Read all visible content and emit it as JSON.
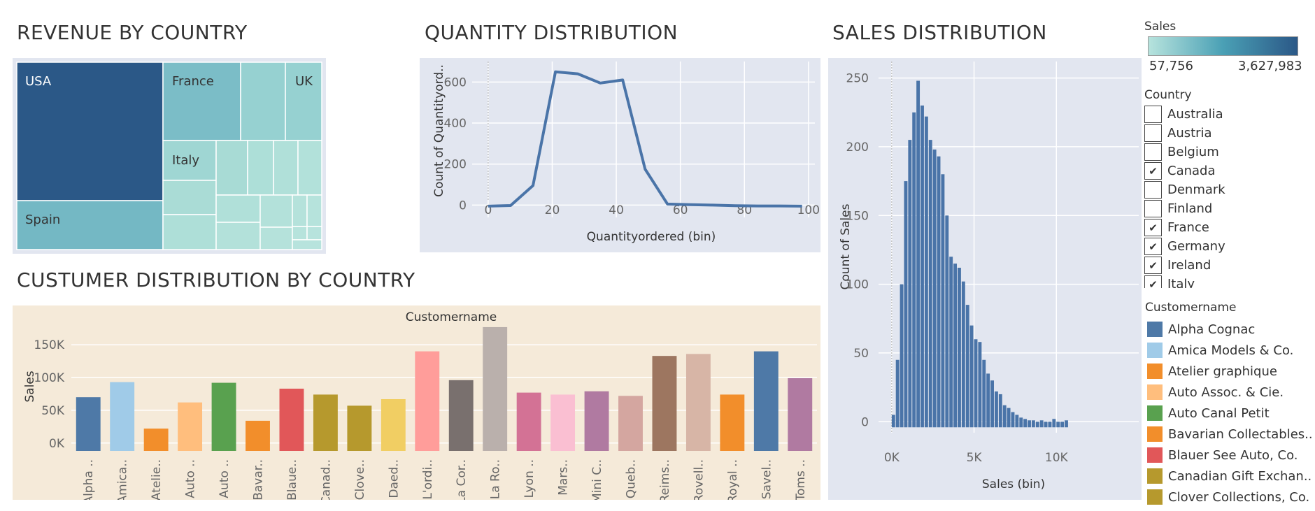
{
  "titles": {
    "revenue": "REVENUE BY COUNTRY",
    "quantity": "QUANTITY DISTRIBUTION",
    "sales": "SALES DISTRIBUTION",
    "customer": "CUSTUMER DISTRIBUTION BY COUNTRY"
  },
  "sales_legend": {
    "title": "Sales",
    "min_label": "57,756",
    "max_label": "3,627,983",
    "color_low": "#b7e3dd",
    "color_high": "#2b5887"
  },
  "country_filter": {
    "title": "Country",
    "items": [
      {
        "label": "Australia",
        "checked": false
      },
      {
        "label": "Austria",
        "checked": false
      },
      {
        "label": "Belgium",
        "checked": false
      },
      {
        "label": "Canada",
        "checked": true
      },
      {
        "label": "Denmark",
        "checked": false
      },
      {
        "label": "Finland",
        "checked": false
      },
      {
        "label": "France",
        "checked": true
      },
      {
        "label": "Germany",
        "checked": true
      },
      {
        "label": "Ireland",
        "checked": true
      },
      {
        "label": "Italy",
        "checked": true
      }
    ]
  },
  "customer_legend": {
    "title": "Customername",
    "items": [
      {
        "label": "Alpha Cognac",
        "color": "#4e79a7"
      },
      {
        "label": "Amica Models & Co.",
        "color": "#a0cbe8"
      },
      {
        "label": "Atelier graphique",
        "color": "#f28e2b"
      },
      {
        "label": "Auto Assoc. & Cie.",
        "color": "#ffbe7d"
      },
      {
        "label": "Auto Canal Petit",
        "color": "#59a14f"
      },
      {
        "label": "Bavarian Collectables..",
        "color": "#f28e2b"
      },
      {
        "label": "Blauer See Auto, Co.",
        "color": "#e15759"
      },
      {
        "label": "Canadian Gift Exchan..",
        "color": "#b6992d"
      },
      {
        "label": "Clover Collections, Co.",
        "color": "#b6992d"
      }
    ]
  },
  "chart_data": [
    {
      "type": "treemap",
      "title": "REVENUE BY COUNTRY",
      "color_min": 57756,
      "color_max": 3627983,
      "labels": [
        "USA",
        "France",
        "UK",
        "Italy",
        "Spain"
      ]
    },
    {
      "type": "line",
      "title": "QUANTITY DISTRIBUTION",
      "xlabel": "Quantityordered (bin)",
      "ylabel": "Count of Quantityord..",
      "x": [
        0,
        7,
        14,
        21,
        28,
        35,
        42,
        49,
        56,
        63,
        70,
        77,
        84,
        91,
        98
      ],
      "y": [
        -5,
        -2,
        95,
        650,
        640,
        595,
        610,
        175,
        5,
        2,
        0,
        -3,
        -4,
        -4,
        -5
      ],
      "xticks": [
        0,
        20,
        40,
        60,
        80,
        100
      ],
      "yticks": [
        0,
        200,
        400,
        600
      ],
      "xlim": [
        -5,
        102
      ],
      "ylim": [
        -60,
        700
      ],
      "color": "#4a74a8"
    },
    {
      "type": "bar",
      "title": "SALES DISTRIBUTION",
      "xlabel": "Sales (bin)",
      "ylabel": "Count of Sales",
      "bin_width": 250,
      "x_start": 0,
      "values": [
        5,
        45,
        100,
        175,
        205,
        225,
        248,
        230,
        222,
        205,
        198,
        193,
        180,
        150,
        120,
        115,
        112,
        102,
        85,
        70,
        60,
        58,
        45,
        35,
        30,
        22,
        20,
        12,
        10,
        7,
        5,
        3,
        2,
        1,
        1,
        0,
        1,
        0,
        0,
        2,
        0,
        0,
        1
      ],
      "xticks": [
        "0K",
        "5K",
        "10K"
      ],
      "xtick_values": [
        0,
        5000,
        10000
      ],
      "yticks": [
        0,
        50,
        100,
        150,
        200,
        250
      ],
      "xlim": [
        -800,
        15000
      ],
      "ylim": [
        -8,
        262
      ],
      "color": "#4a74a8"
    },
    {
      "type": "bar",
      "title": "CUSTUMER DISTRIBUTION BY COUNTRY",
      "header": "Customername",
      "ylabel": "Sales",
      "yticks": [
        0,
        50000,
        100000,
        150000
      ],
      "ytick_labels": [
        "0K",
        "50K",
        "100K",
        "150K"
      ],
      "ylim": [
        -12000,
        178000
      ],
      "categories": [
        "Alpha ..",
        "Amica..",
        "Atelie..",
        "Auto ..",
        "Auto ..",
        "Bavar..",
        "Blaue..",
        "Canad..",
        "Clove..",
        "Daed..",
        "L'ordi..",
        "La Cor..",
        "La Ro..",
        "Lyon ..",
        "Mars..",
        "Mini C..",
        "Queb..",
        "Reims..",
        "Rovell..",
        "Royal ..",
        "Savel..",
        "Toms .."
      ],
      "values": [
        70000,
        93000,
        22000,
        62000,
        92000,
        34000,
        83000,
        74000,
        57000,
        67000,
        140000,
        96000,
        177000,
        77000,
        74000,
        79000,
        72000,
        133000,
        136000,
        74000,
        140000,
        99000
      ],
      "colors": [
        "#4e79a7",
        "#a0cbe8",
        "#f28e2b",
        "#ffbe7d",
        "#59a14f",
        "#f28e2b",
        "#e15759",
        "#b6992d",
        "#b6992d",
        "#f1ce63",
        "#ff9d9a",
        "#79706e",
        "#bab0ac",
        "#d37295",
        "#fabfd2",
        "#b07aa1",
        "#d4a6a0",
        "#9d7660",
        "#d7b5a6",
        "#f28e2b",
        "#4e79a7",
        "#b07aa1"
      ]
    }
  ]
}
